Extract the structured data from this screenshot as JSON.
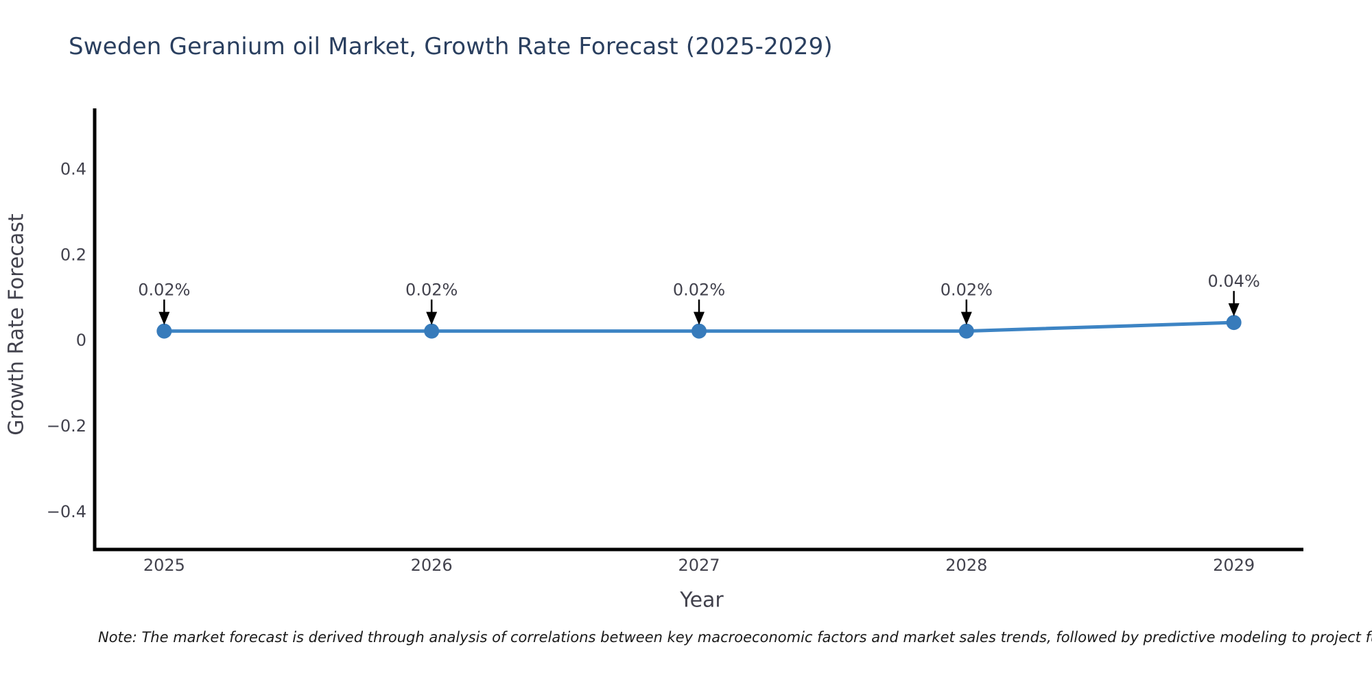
{
  "note": "Note: The market forecast is derived through analysis of correlations between key macroeconomic factors and market sales trends, followed by predictive modeling to project future sa",
  "chart_data": {
    "type": "line",
    "title": "Sweden Geranium oil Market, Growth Rate Forecast (2025-2029)",
    "xlabel": "Year",
    "ylabel": "Growth Rate Forecast",
    "x": [
      2025,
      2026,
      2027,
      2028,
      2029
    ],
    "series": [
      {
        "name": "Growth Rate Forecast",
        "values": [
          0.02,
          0.02,
          0.02,
          0.02,
          0.04
        ],
        "point_labels": [
          "0.02%",
          "0.02%",
          "0.02%",
          "0.02%",
          "0.04%"
        ]
      }
    ],
    "xtick_labels": [
      "2025",
      "2026",
      "2027",
      "2028",
      "2029"
    ],
    "yticks": [
      0.4,
      0.2,
      0,
      -0.2,
      -0.4
    ],
    "ytick_labels": [
      "0.4",
      "0.2",
      "0",
      "−0.2",
      "−0.4"
    ],
    "xlim": [
      2024.74,
      2029.26
    ],
    "ylim": [
      -0.49,
      0.54
    ],
    "grid": false,
    "legend": false,
    "marker": "circle",
    "annotation_arrow": "down-arrow",
    "colors": {
      "line": "#3d84c4",
      "marker": "#377bbb",
      "spine": "#000000",
      "title": "#2a3f5f",
      "tick_label": "#42424d",
      "axis_label": "#42424d",
      "annotation": "#42424d",
      "arrow": "#000000",
      "note": "#1a1a1a",
      "background": "#ffffff"
    }
  }
}
